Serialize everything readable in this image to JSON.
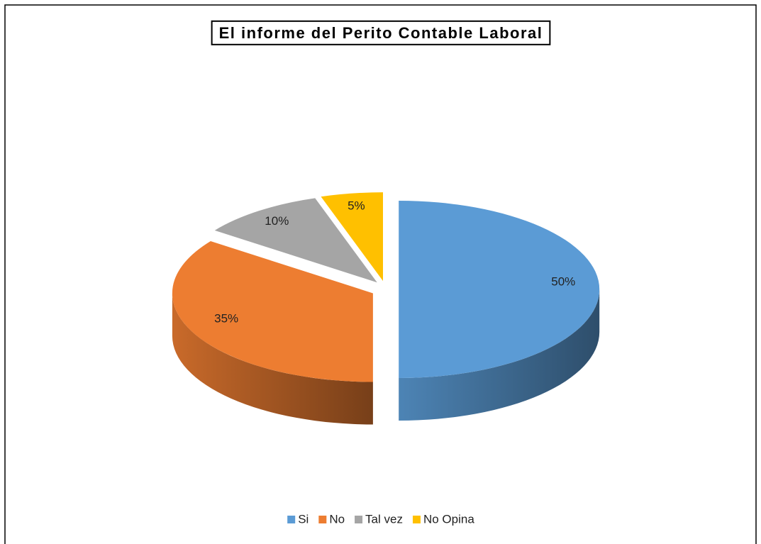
{
  "chart_data": {
    "type": "pie",
    "title": "El informe del Perito Contable Laboral",
    "categories": [
      "Si",
      "No",
      "Tal vez",
      "No Opina"
    ],
    "values": [
      50,
      35,
      10,
      5
    ],
    "value_labels": [
      "50%",
      "35%",
      "10%",
      "5%"
    ],
    "colors": [
      "#5b9bd5",
      "#ed7d31",
      "#a5a5a5",
      "#ffc000"
    ],
    "legend": "bottom"
  }
}
